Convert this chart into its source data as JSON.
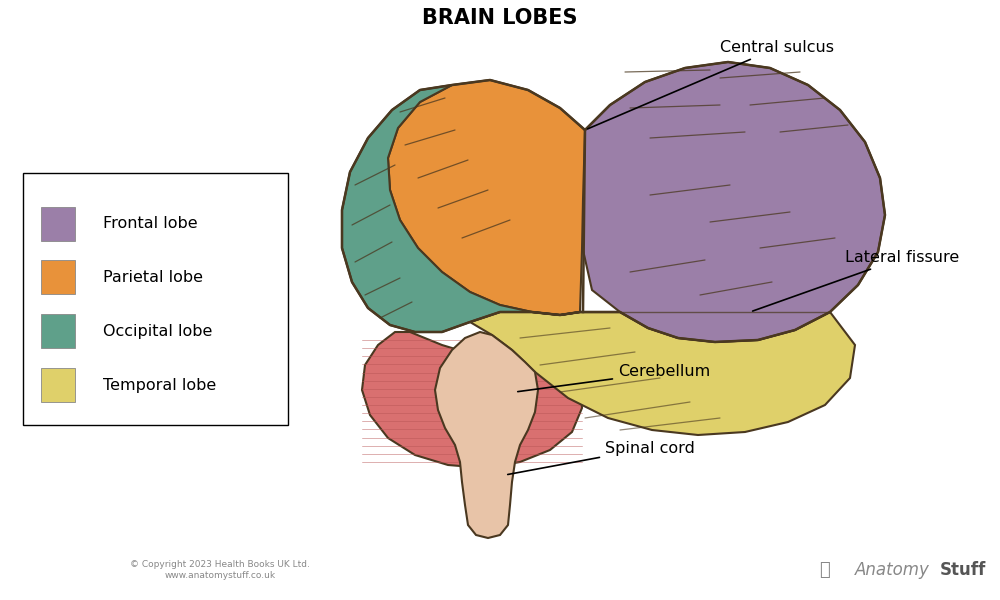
{
  "title": "BRAIN LOBES",
  "title_fontsize": 15,
  "title_fontweight": "bold",
  "background_color": "#ffffff",
  "legend_items": [
    {
      "label": "Frontal lobe",
      "color": "#9b7fa8"
    },
    {
      "label": "Parietal lobe",
      "color": "#e8923a"
    },
    {
      "label": "Occipital lobe",
      "color": "#5fa08a"
    },
    {
      "label": "Temporal lobe",
      "color": "#dfd06a"
    }
  ],
  "frontal_lobe_color": "#9b7fa8",
  "parietal_lobe_color": "#e8923a",
  "occipital_lobe_color": "#5fa08a",
  "temporal_lobe_color": "#dfd06a",
  "cerebellum_color": "#d97070",
  "brainstem_color": "#e8c4a8",
  "outline_color": "#4a3820",
  "copyright_text": "© Copyright 2023 Health Books UK Ltd.\nwww.anatomystuff.co.uk"
}
